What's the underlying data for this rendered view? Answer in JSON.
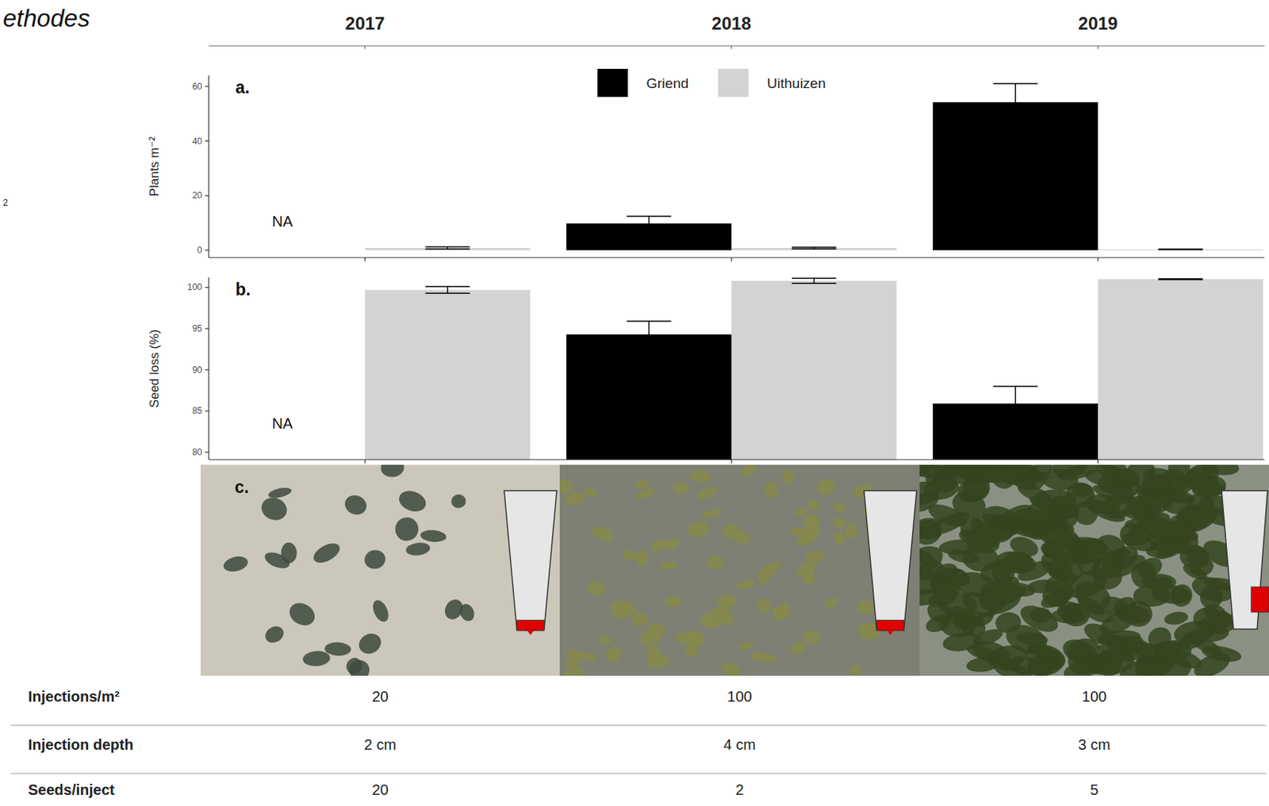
{
  "page": {
    "cropped_heading": "ethodes",
    "margin_note": "2"
  },
  "chart_data": [
    {
      "type": "bar",
      "title": "a.",
      "y_label": "Plants m⁻²",
      "categories": [
        "2017",
        "2018",
        "2019"
      ],
      "series": [
        {
          "name": "Griend",
          "color": "#000000",
          "values": [
            null,
            9.8,
            54.2
          ],
          "errors": [
            null,
            2.6,
            6.8
          ],
          "value_labels": [
            "NA",
            null,
            null
          ]
        },
        {
          "name": "Uithuizen",
          "color": "#d3d3d3",
          "values": [
            0.8,
            0.8,
            0.3
          ],
          "errors": [
            0.4,
            0.3,
            0.1
          ]
        }
      ],
      "ylim": [
        -2.7,
        64
      ],
      "yticks": [
        0,
        20,
        40,
        60
      ],
      "grid": false,
      "legend": "top"
    },
    {
      "type": "bar",
      "title": "b.",
      "y_label": "Seed loss (%)",
      "categories": [
        "2017",
        "2018",
        "2019"
      ],
      "series": [
        {
          "name": "Griend",
          "color": "#000000",
          "values": [
            null,
            94.3,
            85.9
          ],
          "errors": [
            null,
            1.6,
            2.1
          ],
          "value_labels": [
            "NA",
            null,
            null
          ]
        },
        {
          "name": "Uithuizen",
          "color": "#d3d3d3",
          "values": [
            99.7,
            100.8,
            101.0
          ],
          "errors": [
            0.4,
            0.3,
            0.05
          ]
        }
      ],
      "ylim": [
        79.1,
        101.2
      ],
      "yticks": [
        80,
        85,
        90,
        95,
        100
      ],
      "grid": false
    }
  ],
  "photo_panel": {
    "label": "c."
  },
  "table": {
    "rows": [
      {
        "label": "Injections/m²",
        "values": [
          20,
          100,
          100
        ]
      },
      {
        "label": "Injection depth",
        "values": [
          "2 cm",
          "4 cm",
          "3 cm"
        ]
      },
      {
        "label": "Seeds/inject",
        "values": [
          20,
          2,
          5
        ]
      }
    ]
  }
}
